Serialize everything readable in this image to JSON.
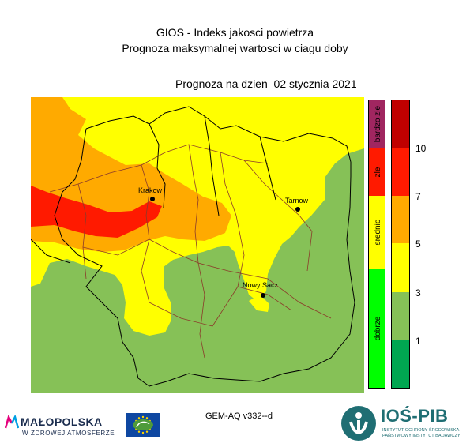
{
  "title_line1": "GIOS - Indeks jakosci powietrza",
  "title_line2": "Prognoza maksymalnej wartosci w ciagu doby",
  "forecast_date": "Prognoza na dzien  02 stycznia 2021",
  "cities": [
    {
      "name": "Krakow"
    },
    {
      "name": "Tarnow"
    },
    {
      "name": "Nowy Sacz"
    }
  ],
  "legend": {
    "categories": [
      {
        "label": "bardzo zle",
        "color": "#a02660"
      },
      {
        "label": "zle",
        "color": "#ff1a00"
      },
      {
        "label": "srednio",
        "color": "#ffff00"
      },
      {
        "label": "dobrze",
        "color": "#00ff00"
      }
    ],
    "scale_colors": [
      "#c00000",
      "#ff1a00",
      "#ffaa00",
      "#ffff00",
      "#86c157",
      "#00a651"
    ],
    "scale_ticks": [
      "10",
      "7",
      "5",
      "3",
      "1"
    ]
  },
  "model_label": "GEM-AQ v332--d",
  "logo_malopolska": {
    "name": "MAŁOPOLSKA",
    "tagline": "W ZDROWEJ ATMOSFERZE"
  },
  "logo_ios": {
    "name": "IOŚ-PIB",
    "sub1": "INSTYTUT OCHRONY ŚRODOWISKA",
    "sub2": "PAŃSTWOWY INSTYTUT BADAWCZY"
  },
  "map_colors": {
    "good": "#86c157",
    "moderate": "#ffff00",
    "sufficient": "#ffaa00",
    "bad": "#ff1a00"
  }
}
